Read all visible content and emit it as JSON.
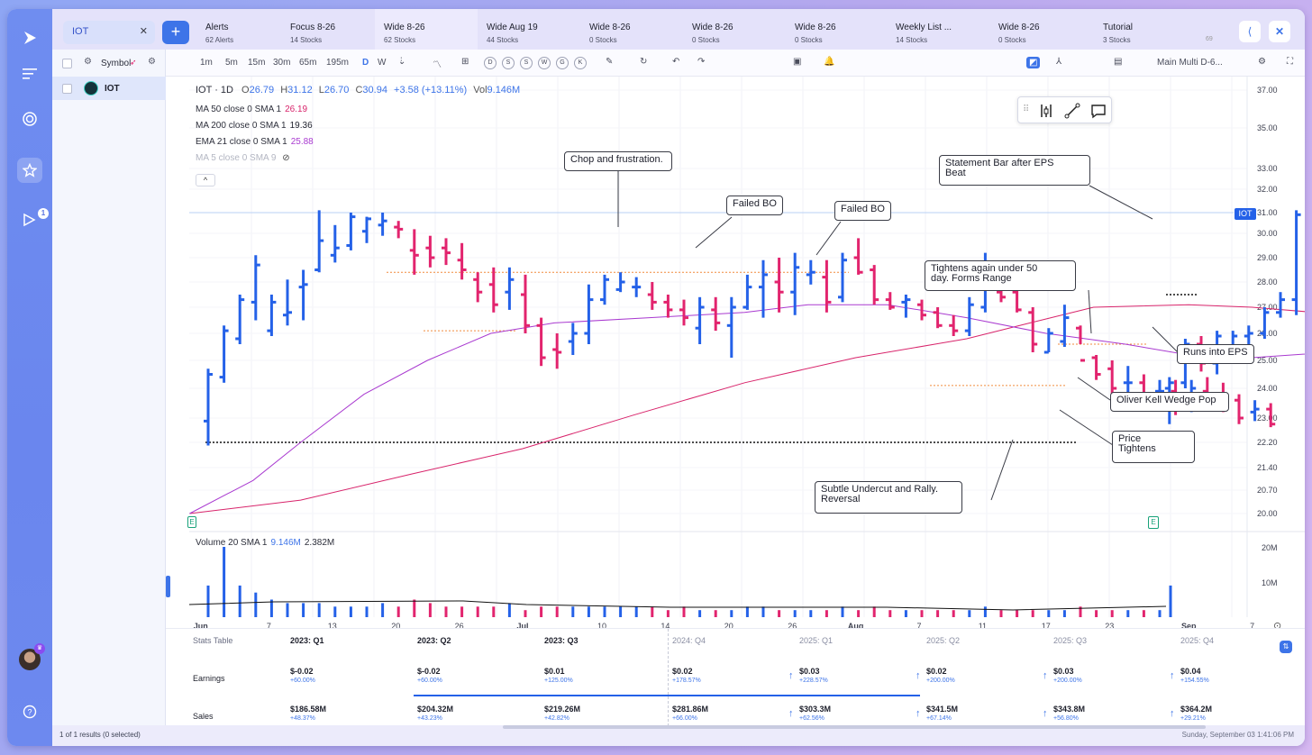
{
  "colors": {
    "up": "#2461e8",
    "down": "#e2246e",
    "ma50": "#d8246b",
    "ma200": "#d0245e",
    "ema21": "#a93ad0",
    "accent": "#3d74e8"
  },
  "search": {
    "value": "IOT"
  },
  "tabs": [
    {
      "label": "Alerts",
      "sub": "62 Alerts",
      "icon": "flag-icon"
    },
    {
      "label": "Focus 8-26",
      "sub": "14 Stocks"
    },
    {
      "label": "Wide 8-26",
      "sub": "62 Stocks",
      "selected": true
    },
    {
      "label": "Wide Aug 19",
      "sub": "44 Stocks"
    },
    {
      "label": "Wide 8-26",
      "sub": "0 Stocks"
    },
    {
      "label": "Wide 8-26",
      "sub": "0 Stocks"
    },
    {
      "label": "Wide 8-26",
      "sub": "0 Stocks"
    },
    {
      "label": "Weekly List ...",
      "sub": "14 Stocks"
    },
    {
      "label": "Wide 8-26",
      "sub": "0 Stocks"
    },
    {
      "label": "Tutorial",
      "sub": "3 Stocks"
    }
  ],
  "tab_more": "69",
  "watchlist": {
    "header": "Symbol",
    "rows": [
      {
        "symbol": "IOT"
      }
    ]
  },
  "toolbar": {
    "intervals": [
      "1m",
      "5m",
      "15m",
      "30m",
      "65m",
      "195m",
      "D",
      "W"
    ],
    "active": "D",
    "letters": [
      "D",
      "S",
      "S",
      "W",
      "G",
      "K"
    ],
    "layout": "Main Multi D-6..."
  },
  "legend": {
    "symbol": "IOT · 1D",
    "o": "26.79",
    "h": "31.12",
    "l": "26.70",
    "c": "30.94",
    "chg": "+3.58 (+13.11%)",
    "vol": "9.146M",
    "ind": [
      {
        "label": "MA 50 close 0 SMA 1",
        "value": "26.19",
        "color": "#d8246b"
      },
      {
        "label": "MA 200 close 0 SMA 1",
        "value": "19.36",
        "color": "#1d1f2b"
      },
      {
        "label": "EMA 21 close 0 SMA 1",
        "value": "25.88",
        "color": "#a93ad0"
      },
      {
        "label": "MA 5 close 0 SMA 9",
        "value": "",
        "color": "#aaaaaa",
        "dim": true
      }
    ],
    "volume": {
      "label": "Volume 20 SMA 1",
      "v1": "9.146M",
      "v2": "2.382M"
    }
  },
  "price_axis": [
    "37.00",
    "35.00",
    "33.00",
    "32.00",
    "31.00",
    "30.00",
    "29.00",
    "28.00",
    "27.00",
    "26.00",
    "25.00",
    "24.00",
    "23.00",
    "22.20",
    "21.40",
    "20.70",
    "20.00"
  ],
  "price_tag": "IOT",
  "vol_axis": [
    "20M",
    "10M"
  ],
  "date_axis": [
    {
      "label": "Jun",
      "bar": -0.3
    },
    {
      "label": "7",
      "bar": 4
    },
    {
      "label": "13",
      "bar": 8
    },
    {
      "label": "20",
      "bar": 12
    },
    {
      "label": "26",
      "bar": 16
    },
    {
      "label": "Jul",
      "bar": 20
    },
    {
      "label": "10",
      "bar": 25
    },
    {
      "label": "14",
      "bar": 29
    },
    {
      "label": "20",
      "bar": 33
    },
    {
      "label": "26",
      "bar": 37
    },
    {
      "label": "Aug",
      "bar": 41
    },
    {
      "label": "7",
      "bar": 45
    },
    {
      "label": "11",
      "bar": 49
    },
    {
      "label": "17",
      "bar": 53
    },
    {
      "label": "23",
      "bar": 57
    },
    {
      "label": "Sep",
      "bar": 62
    },
    {
      "label": "7",
      "bar": 66
    }
  ],
  "annotations": [
    {
      "text": "Chop and frustration."
    },
    {
      "text": "Failed BO"
    },
    {
      "text": "Failed BO"
    },
    {
      "text": "Statement Bar after EPS\nBeat"
    },
    {
      "text": "Tightens again under 50\nday. Forms Range"
    },
    {
      "text": "Runs into EPS"
    },
    {
      "text": "Oliver Kell Wedge Pop"
    },
    {
      "text": "Price\nTightens"
    },
    {
      "text": "Subtle Undercut and Rally.\nReversal"
    }
  ],
  "bars": [
    [
      22.9,
      24.7,
      22.1,
      24.5
    ],
    [
      24.4,
      26.3,
      24.2,
      26.1
    ],
    [
      25.8,
      27.5,
      25.6,
      27.3
    ],
    [
      27.2,
      29.1,
      26.5,
      28.7
    ],
    [
      26.1,
      27.5,
      25.9,
      27.2
    ],
    [
      26.7,
      28.1,
      26.3,
      26.8
    ],
    [
      27.8,
      28.5,
      26.5,
      27.9
    ],
    [
      28.5,
      31.1,
      28.4,
      29.7
    ],
    [
      29.1,
      30.4,
      28.8,
      29.4
    ],
    [
      29.5,
      31.0,
      29.3,
      30.8
    ],
    [
      30.1,
      30.8,
      29.6,
      30.7
    ],
    [
      30.4,
      31.0,
      29.9,
      30.6
    ],
    [
      30.3,
      30.6,
      29.8,
      30.2
    ],
    [
      29.3,
      30.2,
      28.3,
      29.1
    ],
    [
      29.4,
      29.9,
      28.6,
      29.0
    ],
    [
      29.4,
      29.8,
      28.7,
      29.2
    ],
    [
      28.9,
      29.6,
      28.1,
      28.5
    ],
    [
      28.1,
      28.4,
      27.2,
      27.6
    ],
    [
      27.9,
      28.6,
      26.8,
      27.1
    ],
    [
      27.6,
      28.6,
      26.9,
      28.1
    ],
    [
      27.5,
      28.3,
      26.0,
      26.3
    ],
    [
      26.3,
      26.6,
      24.8,
      25.1
    ],
    [
      25.4,
      26.0,
      24.7,
      25.3
    ],
    [
      25.7,
      26.4,
      25.2,
      26.0
    ],
    [
      26.0,
      27.9,
      25.6,
      27.3
    ],
    [
      27.3,
      28.3,
      27.1,
      28.1
    ],
    [
      27.7,
      28.4,
      27.6,
      28.0
    ],
    [
      27.8,
      28.2,
      27.4,
      27.8
    ],
    [
      27.5,
      28.0,
      26.9,
      27.2
    ],
    [
      27.2,
      27.5,
      26.6,
      26.9
    ],
    [
      26.9,
      27.3,
      26.3,
      26.6
    ],
    [
      26.2,
      27.4,
      25.6,
      27.0
    ],
    [
      26.9,
      27.4,
      26.1,
      26.4
    ],
    [
      26.3,
      27.4,
      25.1,
      27.0
    ],
    [
      27.0,
      28.3,
      26.9,
      27.8
    ],
    [
      27.8,
      28.9,
      26.6,
      28.3
    ],
    [
      28.0,
      29.0,
      26.8,
      27.6
    ],
    [
      27.6,
      29.2,
      26.7,
      28.6
    ],
    [
      28.3,
      28.9,
      27.9,
      28.4
    ],
    [
      28.2,
      28.9,
      26.8,
      27.2
    ],
    [
      27.4,
      29.2,
      27.2,
      28.9
    ],
    [
      29.0,
      29.8,
      28.3,
      28.4
    ],
    [
      28.5,
      28.7,
      27.1,
      27.3
    ],
    [
      27.3,
      27.6,
      26.9,
      27.0
    ],
    [
      27.2,
      27.5,
      26.6,
      27.3
    ],
    [
      27.1,
      27.3,
      26.5,
      26.7
    ],
    [
      26.8,
      27.0,
      26.2,
      26.3
    ],
    [
      26.3,
      26.7,
      25.9,
      26.1
    ],
    [
      26.1,
      27.4,
      25.9,
      27.1
    ],
    [
      27.0,
      29.2,
      26.8,
      28.6
    ],
    [
      27.6,
      27.9,
      27.2,
      27.4
    ],
    [
      27.6,
      27.8,
      26.8,
      26.9
    ],
    [
      26.8,
      27.0,
      25.3,
      25.6
    ],
    [
      25.3,
      26.2,
      25.3,
      26.0
    ],
    [
      25.7,
      27.1,
      25.5,
      26.6
    ],
    [
      26.2,
      26.3,
      25.6,
      25.0
    ],
    [
      25.1,
      25.2,
      24.3,
      24.5
    ],
    [
      24.7,
      25.0,
      23.6,
      24.0
    ],
    [
      24.2,
      24.8,
      23.8,
      24.2
    ],
    [
      24.2,
      24.5,
      23.3,
      23.8
    ],
    [
      23.9,
      24.3,
      23.4,
      23.9
    ],
    [
      23.9,
      24.3,
      23.1,
      23.3
    ],
    [
      23.6,
      24.3,
      23.2,
      24.0
    ],
    [
      23.9,
      24.4,
      23.7,
      23.8
    ],
    [
      23.7,
      24.2,
      23.2,
      23.4
    ],
    [
      23.6,
      23.8,
      22.8,
      23.0
    ],
    [
      23.2,
      23.6,
      22.9,
      23.3
    ],
    [
      23.3,
      23.5,
      22.7,
      22.8
    ]
  ]
}
